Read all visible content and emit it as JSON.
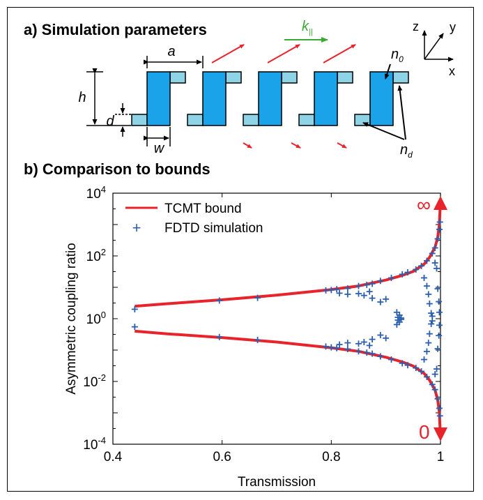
{
  "panel_a": {
    "title": "a) Simulation parameters",
    "labels": {
      "a": "a",
      "h": "h",
      "d": "d",
      "w": "w",
      "k": "k",
      "k_sub": "||",
      "n0": "n",
      "n0_sub": "0",
      "nd": "n",
      "nd_sub": "d",
      "axis_z": "z",
      "axis_y": "y",
      "axis_x": "x"
    },
    "colors": {
      "block_main": "#1aa3e8",
      "block_small": "#8fd4e6",
      "incident_arrow": "#e8232b",
      "k_arrow": "#3aaa35"
    }
  },
  "panel_b": {
    "title": "b) Comparison to bounds",
    "legend": [
      "TCMT bound",
      "FDTD simulation"
    ],
    "annotations": {
      "infinity": "∞",
      "zero": "0"
    },
    "colors": {
      "bound": "#e8232b",
      "simulation": "#2b5fae"
    }
  },
  "chart_data": {
    "type": "line",
    "xlabel": "Transmission",
    "ylabel": "Asymmetric coupling ratio",
    "xlim": [
      0.4,
      1.0
    ],
    "ylim_log10": [
      -4,
      4
    ],
    "y_scale": "log",
    "xticks": [
      "0.4",
      "0.6",
      "0.8",
      "1"
    ],
    "xtick_values": [
      0.4,
      0.6,
      0.8,
      1.0
    ],
    "yticks_exp": [
      "4",
      "2",
      "0",
      "-2",
      "-4"
    ],
    "ytick_values_log10": [
      4,
      2,
      0,
      -2,
      -4
    ],
    "ytick_base": "10",
    "grid": false,
    "legend_position": "top-left",
    "series": [
      {
        "name": "TCMT bound",
        "style": "line",
        "x": [
          0.44,
          0.5,
          0.6,
          0.7,
          0.8,
          0.85,
          0.9,
          0.93,
          0.95,
          0.97,
          0.98,
          0.99,
          0.995,
          0.998,
          0.9995
        ],
        "y_upper": [
          2.5,
          3.0,
          4.0,
          5.6,
          8.5,
          11.0,
          17.0,
          24.0,
          32.0,
          55.0,
          90.0,
          190.0,
          400.0,
          1000.0,
          4000.0
        ],
        "y_lower": [
          0.4,
          0.33,
          0.25,
          0.18,
          0.118,
          0.091,
          0.059,
          0.042,
          0.031,
          0.018,
          0.011,
          0.0053,
          0.0025,
          0.001,
          0.00025
        ]
      },
      {
        "name": "FDTD simulation",
        "style": "markers",
        "points": [
          [
            0.44,
            2.0
          ],
          [
            0.44,
            0.55
          ],
          [
            0.595,
            3.8
          ],
          [
            0.595,
            0.26
          ],
          [
            0.665,
            4.6
          ],
          [
            0.665,
            0.21
          ],
          [
            0.79,
            8.0
          ],
          [
            0.79,
            0.13
          ],
          [
            0.8,
            8.2
          ],
          [
            0.8,
            0.122
          ],
          [
            0.81,
            8.7
          ],
          [
            0.81,
            0.115
          ],
          [
            0.83,
            9.2
          ],
          [
            0.83,
            0.108
          ],
          [
            0.85,
            11.0
          ],
          [
            0.85,
            0.091
          ],
          [
            0.865,
            12.0
          ],
          [
            0.865,
            0.083
          ],
          [
            0.875,
            13.0
          ],
          [
            0.875,
            0.077
          ],
          [
            0.89,
            16.0
          ],
          [
            0.89,
            0.063
          ],
          [
            0.91,
            20.0
          ],
          [
            0.91,
            0.05
          ],
          [
            0.93,
            26.0
          ],
          [
            0.93,
            0.038
          ],
          [
            0.94,
            30.0
          ],
          [
            0.94,
            0.033
          ],
          [
            0.955,
            37.0
          ],
          [
            0.955,
            0.027
          ],
          [
            0.965,
            48.0
          ],
          [
            0.965,
            0.021
          ],
          [
            0.975,
            70.0
          ],
          [
            0.975,
            0.014
          ],
          [
            0.985,
            120.0
          ],
          [
            0.985,
            0.008
          ],
          [
            0.99,
            180.0
          ],
          [
            0.99,
            0.0055
          ],
          [
            0.995,
            350.0
          ],
          [
            0.995,
            0.0028
          ],
          [
            0.998,
            700.0
          ],
          [
            0.998,
            0.0014
          ],
          [
            0.999,
            1200.0
          ],
          [
            0.999,
            0.0008
          ],
          [
            0.815,
            6.5
          ],
          [
            0.815,
            0.15
          ],
          [
            0.83,
            6.0
          ],
          [
            0.83,
            0.17
          ],
          [
            0.85,
            6.3
          ],
          [
            0.85,
            0.16
          ],
          [
            0.86,
            5.5
          ],
          [
            0.86,
            0.18
          ],
          [
            0.87,
            7.3
          ],
          [
            0.87,
            0.14
          ],
          [
            0.875,
            4.5
          ],
          [
            0.875,
            0.22
          ],
          [
            0.89,
            3.4
          ],
          [
            0.89,
            0.3
          ],
          [
            0.9,
            4.2
          ],
          [
            0.9,
            0.24
          ],
          [
            0.92,
            1.6
          ],
          [
            0.92,
            0.65
          ],
          [
            0.925,
            1.3
          ],
          [
            0.925,
            0.78
          ],
          [
            0.922,
            1.1
          ],
          [
            0.922,
            0.9
          ],
          [
            0.928,
            0.95
          ],
          [
            0.928,
            1.05
          ],
          [
            0.97,
            20.0
          ],
          [
            0.97,
            0.05
          ],
          [
            0.975,
            11.0
          ],
          [
            0.975,
            0.09
          ],
          [
            0.978,
            6.0
          ],
          [
            0.978,
            0.17
          ],
          [
            0.98,
            3.0
          ],
          [
            0.98,
            0.33
          ],
          [
            0.983,
            1.5
          ],
          [
            0.983,
            0.68
          ],
          [
            0.985,
            0.85
          ],
          [
            0.985,
            1.2
          ],
          [
            0.99,
            60.0
          ],
          [
            0.99,
            0.017
          ],
          [
            0.993,
            40.0
          ],
          [
            0.993,
            0.025
          ],
          [
            0.995,
            9.0
          ],
          [
            0.995,
            0.11
          ],
          [
            0.997,
            3.5
          ],
          [
            0.997,
            0.29
          ],
          [
            0.998,
            1.6
          ],
          [
            0.998,
            0.62
          ]
        ]
      }
    ]
  }
}
